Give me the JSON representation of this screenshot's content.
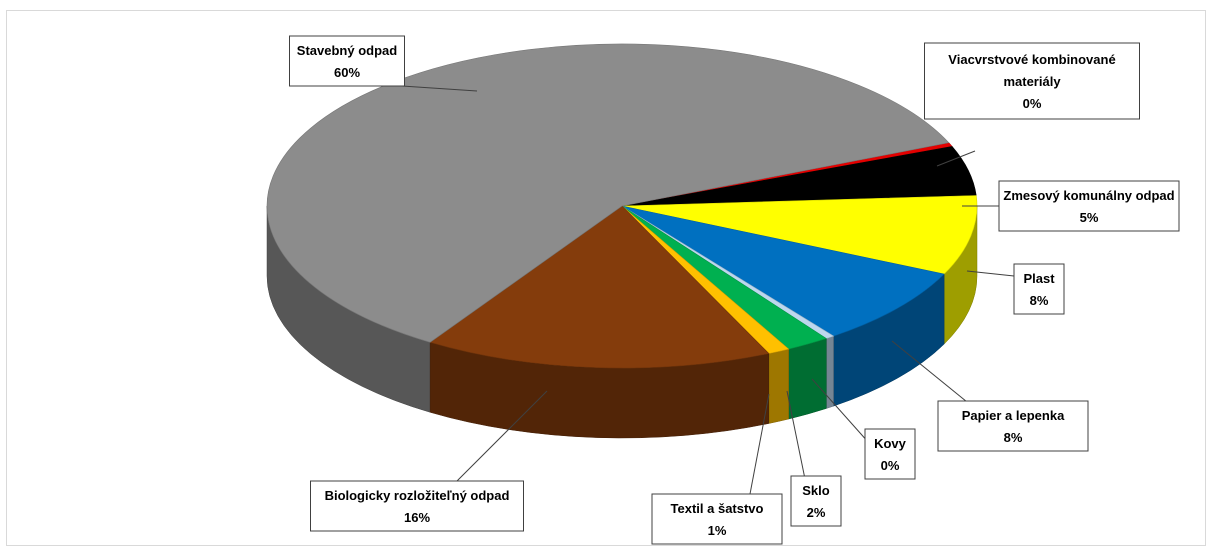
{
  "chart_data": {
    "type": "pie",
    "title": "",
    "legend": "none",
    "slices": [
      {
        "label": "Viacvrstvové kombinované materiály",
        "value": 0.4,
        "value_label": "0%",
        "color": "#e30000"
      },
      {
        "label": "Zmesový komunálny odpad",
        "value": 5,
        "value_label": "5%",
        "color": "#000000"
      },
      {
        "label": "Plast",
        "value": 8,
        "value_label": "8%",
        "color": "#ffff00"
      },
      {
        "label": "Papier a lepenka",
        "value": 8,
        "value_label": "8%",
        "color": "#0070c0"
      },
      {
        "label": "Kovy",
        "value": 0.4,
        "value_label": "0%",
        "color": "#bdd7ee"
      },
      {
        "label": "Sklo",
        "value": 2,
        "value_label": "2%",
        "color": "#00b050"
      },
      {
        "label": "Textil a šatstvo",
        "value": 1,
        "value_label": "1%",
        "color": "#ffc000"
      },
      {
        "label": "Biologicky rozložiteľný odpad",
        "value": 16,
        "value_label": "16%",
        "color": "#843c0c"
      },
      {
        "label": "Stavebný odpad",
        "value": 60,
        "value_label": "60%",
        "color": "#8c8c8c"
      }
    ]
  }
}
